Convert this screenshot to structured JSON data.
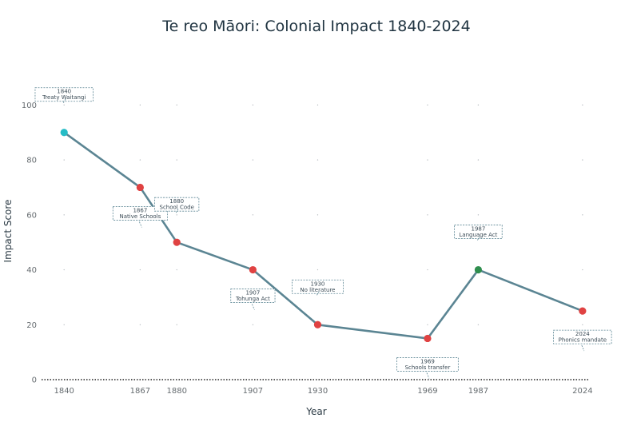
{
  "chart_data": {
    "type": "line",
    "title": "Te reo Māori: Colonial Impact 1840-2024",
    "xlabel": "Year",
    "ylabel": "Impact Score",
    "x": [
      1840,
      1867,
      1880,
      1907,
      1930,
      1969,
      1987,
      2024
    ],
    "x_tick_labels": [
      "1840",
      "1867",
      "1880",
      "1907",
      "1930",
      "1969",
      "1987",
      "2024"
    ],
    "xlim": [
      1832,
      2030
    ],
    "y_ticks": [
      0,
      20,
      40,
      60,
      80,
      100
    ],
    "y_tick_labels": [
      "0",
      "20",
      "40",
      "60",
      "80",
      "100"
    ],
    "ylim": [
      0,
      110
    ],
    "grid": "dotted",
    "series": [
      {
        "values": [
          90,
          70,
          50,
          40,
          20,
          15,
          40,
          25
        ],
        "line_color": "#5b8593",
        "point_colors": [
          "#26bcc6",
          "#e04242",
          "#e04242",
          "#e04242",
          "#e04242",
          "#e04242",
          "#2f8e4e",
          "#e04242"
        ]
      }
    ],
    "annotations": [
      {
        "x": 1840,
        "y": 90,
        "year": "1840",
        "label": "Treaty Waitangi",
        "placement": "above"
      },
      {
        "x": 1867,
        "y": 70,
        "year": "1867",
        "label": "Native Schools",
        "placement": "below"
      },
      {
        "x": 1880,
        "y": 50,
        "year": "1880",
        "label": "School Code",
        "placement": "above"
      },
      {
        "x": 1907,
        "y": 40,
        "year": "1907",
        "label": "Tohunga Act",
        "placement": "below"
      },
      {
        "x": 1930,
        "y": 20,
        "year": "1930",
        "label": "No literature",
        "placement": "above"
      },
      {
        "x": 1969,
        "y": 15,
        "year": "1969",
        "label": "Schools transfer",
        "placement": "below"
      },
      {
        "x": 1987,
        "y": 40,
        "year": "1987",
        "label": "Language Act",
        "placement": "above"
      },
      {
        "x": 2024,
        "y": 25,
        "year": "2024",
        "label": "Phonics mandate",
        "placement": "below"
      }
    ],
    "colors": {
      "title": "#1f3340",
      "line": "#5b8593",
      "zero_line": "#222222",
      "grid": "#b9bec2"
    }
  }
}
